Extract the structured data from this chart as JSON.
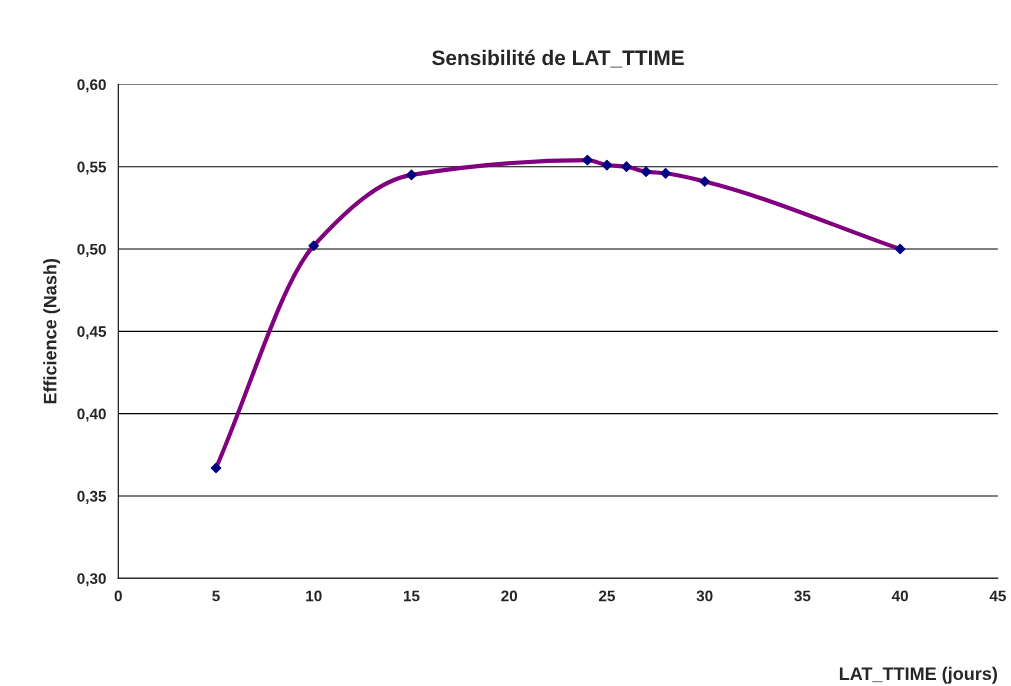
{
  "chart_data": {
    "type": "line",
    "title": "Sensibilité de LAT_TTIME",
    "xlabel": "LAT_TTIME (jours)",
    "ylabel": "Efficience (Nash)",
    "x": [
      5,
      10,
      15,
      24,
      25,
      26,
      27,
      28,
      30,
      40
    ],
    "series": [
      {
        "color": "#800080",
        "values": [
          0.367,
          0.502,
          0.545,
          0.554,
          0.551,
          0.55,
          0.547,
          0.546,
          0.541,
          0.5
        ]
      }
    ],
    "xlim": [
      0,
      45
    ],
    "xticks": [
      0,
      5,
      10,
      15,
      20,
      25,
      30,
      35,
      40,
      45
    ],
    "ylim": [
      0.3,
      0.6
    ],
    "yticks": [
      {
        "value": 0.3,
        "label": "0,30"
      },
      {
        "value": 0.35,
        "label": "0,35"
      },
      {
        "value": 0.4,
        "label": "0,40"
      },
      {
        "value": 0.45,
        "label": "0,45"
      },
      {
        "value": 0.5,
        "label": "0,50"
      },
      {
        "value": 0.55,
        "label": "0,55"
      },
      {
        "value": 0.6,
        "label": "0,60"
      }
    ],
    "grid": "y",
    "legend": false,
    "marker": "diamond",
    "line_style": "solid"
  }
}
